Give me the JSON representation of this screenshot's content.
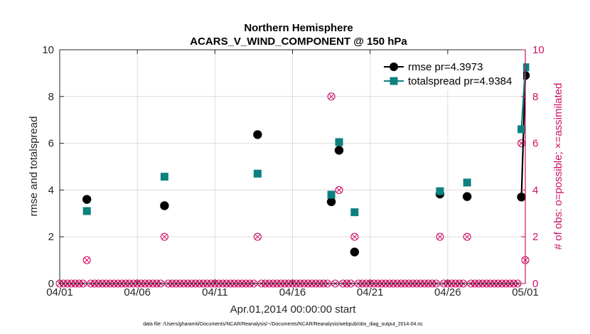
{
  "chart_data": {
    "type": "line",
    "title": "Northern Hemisphere",
    "subtitle": "ACARS_V_WIND_COMPONENT @ 150 hPa",
    "xlabel": "Apr.01,2014 00:00:00 start",
    "ylabel": "rmse and totalspread",
    "ylabel_right": "# of obs: o=possible; ×=assimilated",
    "footnote": "data file: /Users/gharamti/Documents/NCAR/Reanalysis/~/Documents/NCAR/Reanalysis/webpub/obs_diag_output_2014-04.nc",
    "x_ticks": [
      "04/01",
      "04/06",
      "04/11",
      "04/16",
      "04/21",
      "04/26",
      "05/01"
    ],
    "x_tick_days": [
      0,
      5,
      10,
      15,
      20,
      25,
      30
    ],
    "xlim": [
      0,
      30
    ],
    "ylim": [
      0,
      10
    ],
    "y_ticks": [
      "0",
      "2",
      "4",
      "6",
      "8",
      "10"
    ],
    "ylim_right": [
      0,
      10
    ],
    "y_ticks_right": [
      "0",
      "2",
      "4",
      "6",
      "8",
      "10"
    ],
    "grid": true,
    "legend_position": "top-right",
    "series": [
      {
        "name": "rmse pr=4.3973",
        "color": "#000000",
        "marker": "circle",
        "points": [
          [
            1.75,
            3.6
          ],
          [
            6.75,
            3.33
          ],
          [
            12.75,
            6.37
          ],
          [
            17.5,
            3.5
          ],
          [
            18.0,
            5.7
          ],
          [
            19.0,
            1.35
          ],
          [
            24.5,
            3.83
          ],
          [
            26.25,
            3.72
          ],
          [
            29.75,
            3.7
          ],
          [
            30.0,
            8.9
          ]
        ],
        "line_segments": [
          [
            8,
            9
          ]
        ]
      },
      {
        "name": "totalspread pr=4.9384",
        "color": "#0d8080",
        "marker": "square",
        "points": [
          [
            1.75,
            3.1
          ],
          [
            6.75,
            4.57
          ],
          [
            12.75,
            4.7
          ],
          [
            17.5,
            3.8
          ],
          [
            18.0,
            6.05
          ],
          [
            19.0,
            3.05
          ],
          [
            24.5,
            3.95
          ],
          [
            26.25,
            4.32
          ],
          [
            29.75,
            6.6
          ],
          [
            30.0,
            9.25
          ]
        ],
        "line_segments": [
          [
            8,
            9
          ]
        ]
      }
    ],
    "obs_counts": {
      "color": "#cc1166",
      "step_days": 0.25,
      "nonzero": [
        [
          1.75,
          1
        ],
        [
          6.75,
          2
        ],
        [
          12.75,
          2
        ],
        [
          17.5,
          8
        ],
        [
          18.0,
          4
        ],
        [
          19.0,
          2
        ],
        [
          24.5,
          2
        ],
        [
          26.25,
          2
        ],
        [
          29.75,
          6
        ],
        [
          30.0,
          1
        ]
      ]
    }
  }
}
